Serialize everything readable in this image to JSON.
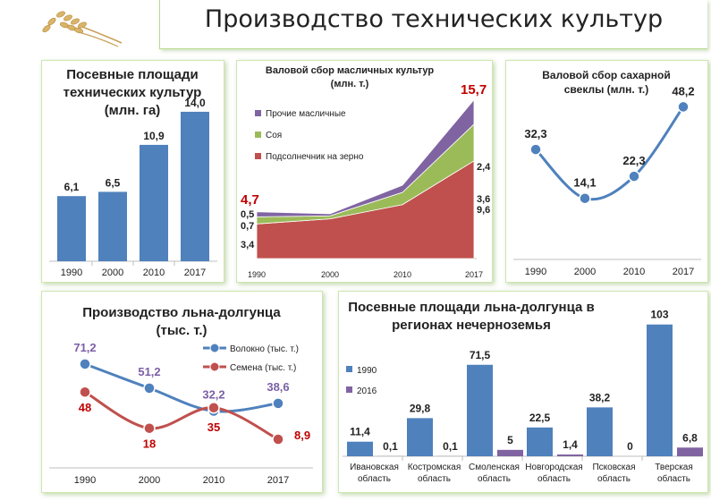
{
  "header": {
    "title": "Производство технических культур"
  },
  "colors": {
    "blue": "#4f81bd",
    "red": "#c0504d",
    "green": "#9bbb59",
    "purple": "#8064a2",
    "purple_text": "#7a5fa6",
    "red_text": "#c00000"
  },
  "chart_data": [
    {
      "type": "bar",
      "title": "Посевные площади технических культур (млн. га)",
      "title_lines": [
        "Посевные площади",
        "технических культур",
        "(млн. га)"
      ],
      "categories": [
        "1990",
        "2000",
        "2010",
        "2017"
      ],
      "values": [
        6.1,
        6.5,
        10.9,
        14.0
      ],
      "labels": [
        "6,1",
        "6,5",
        "10,9",
        "14,0"
      ],
      "ylim": [
        0,
        15
      ]
    },
    {
      "type": "area",
      "title": "Валовой сбор масличных культур (млн. т.)",
      "title_lines": [
        "Валовой сбор масличных культур",
        "(млн. т.)"
      ],
      "x": [
        "1990",
        "2000",
        "2010",
        "2017"
      ],
      "series": [
        {
          "name": "Подсолнечник на зерно",
          "values": [
            3.4,
            3.9,
            5.3,
            9.6
          ],
          "start_label": "3,4",
          "end_label": "9,6"
        },
        {
          "name": "Соя",
          "values": [
            0.7,
            0.3,
            1.2,
            3.6
          ],
          "start_label": "0,7",
          "end_label": "3,6"
        },
        {
          "name": "Прочие масличные",
          "values": [
            0.5,
            0.2,
            0.7,
            2.4
          ],
          "start_label": "0,5",
          "end_label": "2,4"
        }
      ],
      "legend_order": [
        "Прочие масличные",
        "Соя",
        "Подсолнечник на зерно"
      ],
      "totals": {
        "start": "4,7",
        "end": "15,7"
      },
      "ylim": [
        0,
        16
      ]
    },
    {
      "type": "line",
      "title": "Валовой сбор сахарной свеклы (млн. т.)",
      "title_lines": [
        "Валовой сбор сахарной",
        "свеклы (млн. т.)"
      ],
      "x": [
        "1990",
        "2000",
        "2010",
        "2017"
      ],
      "values": [
        32.3,
        14.1,
        22.3,
        48.2
      ],
      "labels": [
        "32,3",
        "14,1",
        "22,3",
        "48,2"
      ],
      "ylim": [
        0,
        60
      ]
    },
    {
      "type": "line",
      "title": "Производство льна-долгунца (тыс. т.)",
      "title_lines": [
        "Производство льна-долгунца",
        "(тыс. т.)"
      ],
      "x": [
        "1990",
        "2000",
        "2010",
        "2017"
      ],
      "series": [
        {
          "name": "Волокно (тыс. т.)",
          "values": [
            71.2,
            51.2,
            32.2,
            38.6
          ],
          "labels": [
            "71,2",
            "51,2",
            "32,2",
            "38,6"
          ]
        },
        {
          "name": "Семена (тыс. т.)",
          "values": [
            48,
            18,
            35,
            8.9
          ],
          "labels": [
            "48",
            "18",
            "35",
            "8,9"
          ]
        }
      ],
      "ylim": [
        0,
        85
      ]
    },
    {
      "type": "bar",
      "title": "Посевные площади льна-долгунца в регионах нечерноземья",
      "title_lines": [
        "Посевные площади льна-долгунца в",
        "регионах нечерноземья"
      ],
      "categories": [
        [
          "Ивановская",
          "область"
        ],
        [
          "Костромская",
          "область"
        ],
        [
          "Смоленская",
          "область"
        ],
        [
          "Новгородская",
          "область"
        ],
        [
          "Псковская",
          "область"
        ],
        [
          "Тверская",
          "область"
        ]
      ],
      "series": [
        {
          "name": "1990",
          "values": [
            11.4,
            29.8,
            71.5,
            22.5,
            38.2,
            103
          ],
          "labels": [
            "11,4",
            "29,8",
            "71,5",
            "22,5",
            "38,2",
            "103"
          ]
        },
        {
          "name": "2016",
          "values": [
            0.1,
            0.1,
            5,
            1.4,
            0,
            6.8
          ],
          "labels": [
            "0,1",
            "0,1",
            "5",
            "1,4",
            "0",
            "6,8"
          ]
        }
      ],
      "ylim": [
        0,
        110
      ]
    }
  ]
}
